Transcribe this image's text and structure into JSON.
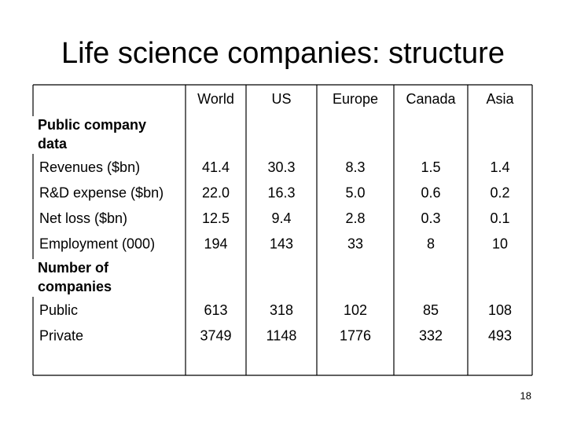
{
  "title": "Life science companies: structure",
  "table": {
    "columns": [
      "World",
      "US",
      "Europe",
      "Canada",
      "Asia"
    ],
    "rows": [
      {
        "section": "Public company data"
      },
      {
        "label": "Revenues ($bn)",
        "cells": [
          "41.4",
          "30.3",
          "8.3",
          "1.5",
          "1.4"
        ]
      },
      {
        "label": "R&D expense ($bn)",
        "cells": [
          "22.0",
          "16.3",
          "5.0",
          "0.6",
          "0.2"
        ]
      },
      {
        "label": "Net loss ($bn)",
        "cells": [
          "12.5",
          "9.4",
          "2.8",
          "0.3",
          "0.1"
        ]
      },
      {
        "label": "Employment (000)",
        "cells": [
          "194",
          "143",
          "33",
          "8",
          "10"
        ]
      },
      {
        "section": "Number of companies"
      },
      {
        "label": "Public",
        "cells": [
          "613",
          "318",
          "102",
          "85",
          "108"
        ]
      },
      {
        "label": "Private",
        "cells": [
          "3749",
          "1148",
          "1776",
          "332",
          "493"
        ]
      }
    ]
  },
  "page_number": "18"
}
